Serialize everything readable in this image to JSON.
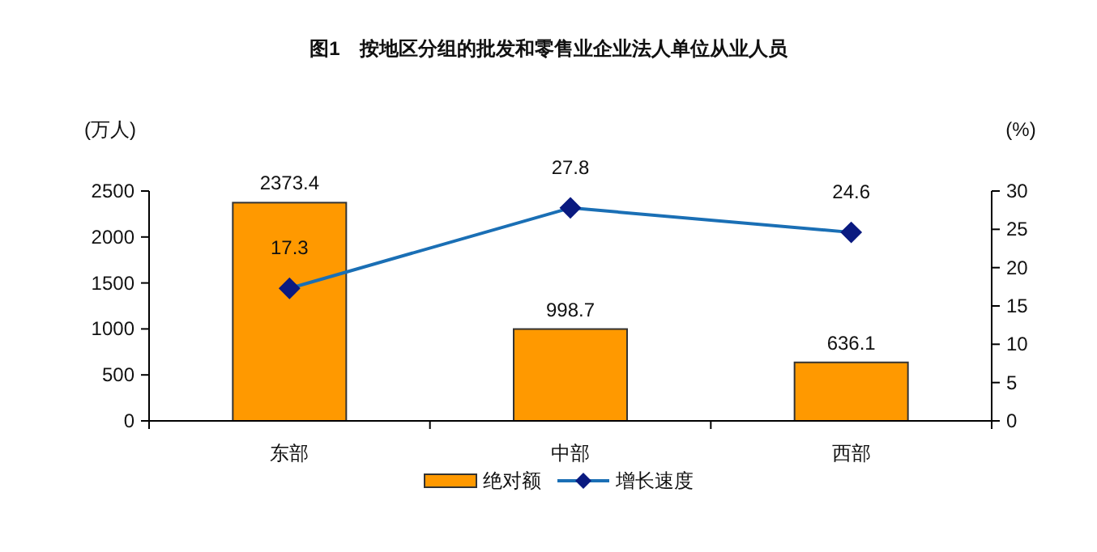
{
  "chart_data": {
    "type": "bar",
    "title": "图1　按地区分组的批发和零售业企业法人单位从业人员",
    "ylabel": "(万人)",
    "y2label": "(%)",
    "categories": [
      "东部",
      "中部",
      "西部"
    ],
    "series": [
      {
        "name": "绝对额",
        "color": "#ff9900",
        "values": [
          2373.4,
          998.7,
          636.1
        ]
      },
      {
        "name": "增长速度",
        "type": "line",
        "axis": "y2",
        "color": "#1a6fb5",
        "marker": "diamond",
        "values": [
          17.3,
          27.8,
          24.6
        ]
      }
    ],
    "ylim": [
      0,
      2500
    ],
    "yticks": [
      0,
      500,
      1000,
      1500,
      2000,
      2500
    ],
    "y2lim": [
      0,
      30
    ],
    "y2ticks": [
      0,
      5,
      10,
      15,
      20,
      25,
      30
    ],
    "data_labels": true,
    "legend": "bottom",
    "grid": false
  }
}
